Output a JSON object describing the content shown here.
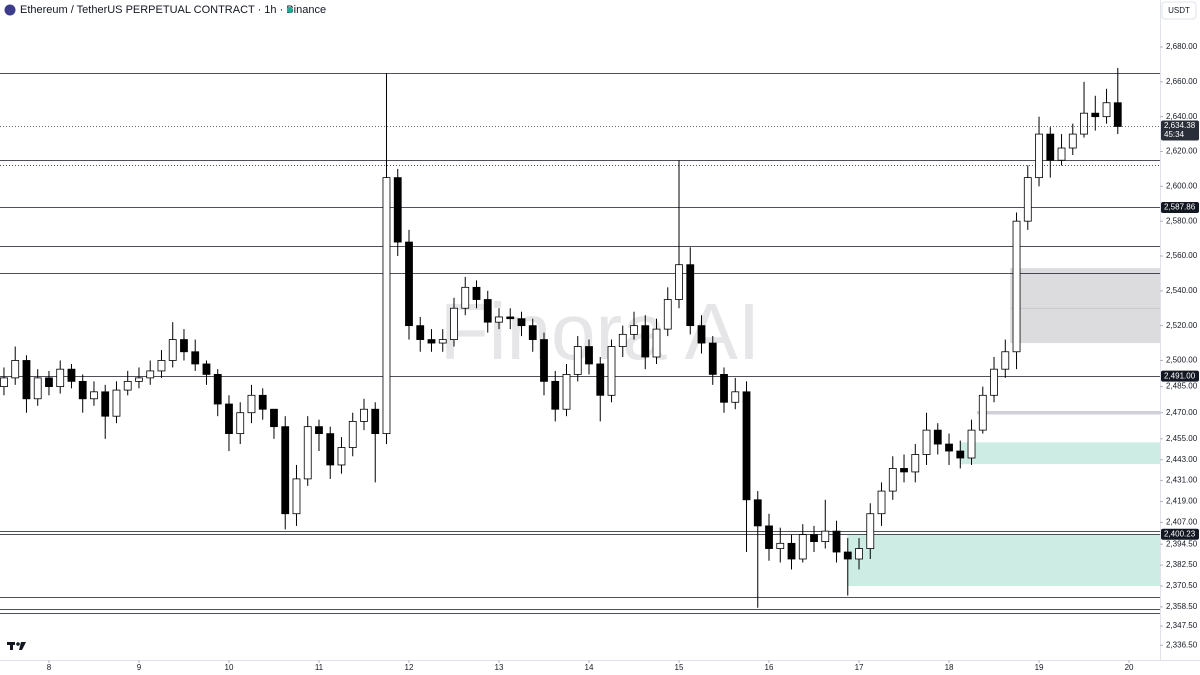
{
  "chart_data": {
    "type": "candlestick",
    "title": "Ethereum / TetherUS PERPETUAL CONTRACT · 1h · Binance",
    "currency": "USDT",
    "watermark": "Finora AI",
    "up_color": "#ffffff",
    "down_color": "#000000",
    "border_color": "#000000",
    "xlim": [
      7.456,
      20.344
    ],
    "xticks": [
      8,
      9,
      10,
      11,
      12,
      13,
      14,
      15,
      16,
      17,
      18,
      19,
      20
    ],
    "ylim": [
      2328,
      2707
    ],
    "yticks": [
      {
        "value": 2680,
        "label": "2,680.00"
      },
      {
        "value": 2660,
        "label": "2,660.00"
      },
      {
        "value": 2640,
        "label": "2,640.00"
      },
      {
        "value": 2620,
        "label": "2,620.00"
      },
      {
        "value": 2600,
        "label": "2,600.00"
      },
      {
        "value": 2580,
        "label": "2,580.00"
      },
      {
        "value": 2560,
        "label": "2,560.00"
      },
      {
        "value": 2540,
        "label": "2,540.00"
      },
      {
        "value": 2520,
        "label": "2,520.00"
      },
      {
        "value": 2500,
        "label": "2,500.00"
      },
      {
        "value": 2485,
        "label": "2,485.00"
      },
      {
        "value": 2470,
        "label": "2,470.00"
      },
      {
        "value": 2455,
        "label": "2,455.00"
      },
      {
        "value": 2443,
        "label": "2,443.00"
      },
      {
        "value": 2431,
        "label": "2,431.00"
      },
      {
        "value": 2419,
        "label": "2,419.00"
      },
      {
        "value": 2407,
        "label": "2,407.00"
      },
      {
        "value": 2394.5,
        "label": "2,394.50"
      },
      {
        "value": 2382.5,
        "label": "2,382.50"
      },
      {
        "value": 2370.5,
        "label": "2,370.50"
      },
      {
        "value": 2358.5,
        "label": "2,358.50"
      },
      {
        "value": 2347.5,
        "label": "2,347.50"
      },
      {
        "value": 2336.5,
        "label": "2,336.50"
      }
    ],
    "x": [
      7.5,
      7.625,
      7.75,
      7.875,
      8,
      8.125,
      8.25,
      8.375,
      8.5,
      8.625,
      8.75,
      8.875,
      9,
      9.125,
      9.25,
      9.375,
      9.5,
      9.625,
      9.75,
      9.875,
      10,
      10.125,
      10.25,
      10.375,
      10.5,
      10.625,
      10.75,
      10.875,
      11,
      11.125,
      11.25,
      11.375,
      11.5,
      11.625,
      11.75,
      11.875,
      12,
      12.125,
      12.25,
      12.375,
      12.5,
      12.625,
      12.75,
      12.875,
      13,
      13.125,
      13.25,
      13.375,
      13.5,
      13.625,
      13.75,
      13.875,
      14,
      14.125,
      14.25,
      14.375,
      14.5,
      14.625,
      14.75,
      14.875,
      15,
      15.125,
      15.25,
      15.375,
      15.5,
      15.625,
      15.75,
      15.875,
      16,
      16.125,
      16.25,
      16.375,
      16.5,
      16.625,
      16.75,
      16.875,
      17,
      17.125,
      17.25,
      17.375,
      17.5,
      17.625,
      17.75,
      17.875,
      18,
      18.125,
      18.25,
      18.375,
      18.5,
      18.625,
      18.75,
      18.875,
      19,
      19.125,
      19.25,
      19.375,
      19.5,
      19.625,
      19.75,
      19.875
    ],
    "open": [
      2485,
      2490,
      2500,
      2478,
      2490,
      2485,
      2495,
      2488,
      2478,
      2482,
      2468,
      2483,
      2488,
      2490,
      2494,
      2500,
      2512,
      2505,
      2498,
      2492,
      2475,
      2458,
      2470,
      2480,
      2472,
      2462,
      2412,
      2432,
      2462,
      2458,
      2440,
      2450,
      2465,
      2472,
      2458,
      2605,
      2568,
      2520,
      2512,
      2510,
      2512,
      2530,
      2542,
      2535,
      2522,
      2525,
      2524,
      2520,
      2512,
      2488,
      2472,
      2492,
      2508,
      2498,
      2480,
      2508,
      2515,
      2520,
      2502,
      2518,
      2535,
      2555,
      2520,
      2510,
      2492,
      2476,
      2482,
      2420,
      2405,
      2392,
      2395,
      2386,
      2400,
      2396,
      2402,
      2390,
      2386,
      2392,
      2412,
      2425,
      2438,
      2436,
      2446,
      2460,
      2452,
      2448,
      2444,
      2460,
      2480,
      2495,
      2505,
      2580,
      2605,
      2630,
      2615,
      2622,
      2630,
      2642,
      2640,
      2648
    ],
    "high": [
      2496,
      2508,
      2503,
      2495,
      2494,
      2500,
      2498,
      2492,
      2488,
      2486,
      2488,
      2494,
      2496,
      2500,
      2506,
      2522,
      2518,
      2512,
      2500,
      2495,
      2480,
      2476,
      2486,
      2484,
      2472,
      2468,
      2440,
      2468,
      2466,
      2462,
      2456,
      2470,
      2478,
      2476,
      2665,
      2610,
      2575,
      2525,
      2518,
      2518,
      2536,
      2548,
      2546,
      2540,
      2530,
      2530,
      2528,
      2524,
      2516,
      2494,
      2498,
      2514,
      2512,
      2502,
      2512,
      2520,
      2528,
      2526,
      2524,
      2542,
      2615,
      2565,
      2526,
      2514,
      2496,
      2490,
      2488,
      2425,
      2412,
      2404,
      2400,
      2406,
      2405,
      2420,
      2408,
      2398,
      2398,
      2418,
      2430,
      2445,
      2446,
      2452,
      2470,
      2464,
      2458,
      2454,
      2466,
      2485,
      2502,
      2512,
      2585,
      2612,
      2640,
      2634,
      2630,
      2636,
      2660,
      2652,
      2656,
      2668
    ],
    "low": [
      2480,
      2486,
      2470,
      2474,
      2480,
      2481,
      2484,
      2470,
      2474,
      2455,
      2464,
      2480,
      2484,
      2486,
      2490,
      2496,
      2500,
      2494,
      2486,
      2468,
      2448,
      2452,
      2464,
      2466,
      2455,
      2403,
      2405,
      2428,
      2448,
      2432,
      2435,
      2445,
      2460,
      2430,
      2452,
      2560,
      2512,
      2505,
      2505,
      2505,
      2508,
      2526,
      2530,
      2516,
      2518,
      2518,
      2514,
      2505,
      2480,
      2465,
      2468,
      2488,
      2492,
      2465,
      2476,
      2502,
      2512,
      2495,
      2498,
      2514,
      2530,
      2515,
      2504,
      2486,
      2470,
      2472,
      2390,
      2358,
      2385,
      2384,
      2380,
      2384,
      2390,
      2392,
      2384,
      2365,
      2380,
      2386,
      2405,
      2420,
      2430,
      2430,
      2440,
      2446,
      2440,
      2438,
      2440,
      2458,
      2476,
      2490,
      2495,
      2575,
      2600,
      2605,
      2612,
      2618,
      2628,
      2632,
      2636,
      2630
    ],
    "close": [
      2490,
      2500,
      2478,
      2490,
      2485,
      2495,
      2488,
      2478,
      2482,
      2468,
      2483,
      2488,
      2490,
      2494,
      2500,
      2512,
      2505,
      2498,
      2492,
      2475,
      2458,
      2470,
      2480,
      2472,
      2462,
      2412,
      2432,
      2462,
      2458,
      2440,
      2450,
      2465,
      2472,
      2458,
      2605,
      2568,
      2520,
      2512,
      2510,
      2512,
      2530,
      2542,
      2535,
      2522,
      2525,
      2524,
      2520,
      2512,
      2488,
      2472,
      2492,
      2508,
      2498,
      2480,
      2508,
      2515,
      2520,
      2502,
      2518,
      2535,
      2555,
      2520,
      2510,
      2492,
      2476,
      2482,
      2420,
      2405,
      2392,
      2395,
      2386,
      2400,
      2396,
      2402,
      2390,
      2386,
      2392,
      2412,
      2425,
      2438,
      2436,
      2446,
      2460,
      2452,
      2448,
      2444,
      2460,
      2480,
      2495,
      2505,
      2580,
      2605,
      2630,
      2615,
      2622,
      2630,
      2642,
      2640,
      2648,
      2634.38
    ],
    "levels": [
      {
        "value": 2665
      },
      {
        "value": 2615
      },
      {
        "value": 2612,
        "style": "dotted"
      },
      {
        "value": 2587.86,
        "label": "2,587.86"
      },
      {
        "value": 2566
      },
      {
        "value": 2550
      },
      {
        "value": 2491,
        "label": "2,491.00"
      },
      {
        "value": 2402
      },
      {
        "value": 2400.23,
        "label": "2,400.23"
      },
      {
        "value": 2364
      },
      {
        "value": 2357
      },
      {
        "value": 2355
      }
    ],
    "zones": [
      {
        "top": 2553,
        "bottom": 2510,
        "mid": 2530,
        "from": 18.68,
        "color": "#dcdcdf"
      },
      {
        "top": 2471,
        "bottom": 2469,
        "from": 18.31,
        "color": "#d0d0da"
      },
      {
        "top": 2453,
        "bottom": 2440.5,
        "from": 18.12,
        "color": "#cdece4"
      },
      {
        "top": 2400,
        "bottom": 2370.5,
        "from": 16.87,
        "color": "#cdece4"
      }
    ],
    "last_price": {
      "value": 2634.38,
      "label": "2,634.38",
      "countdown": "45:34"
    }
  }
}
